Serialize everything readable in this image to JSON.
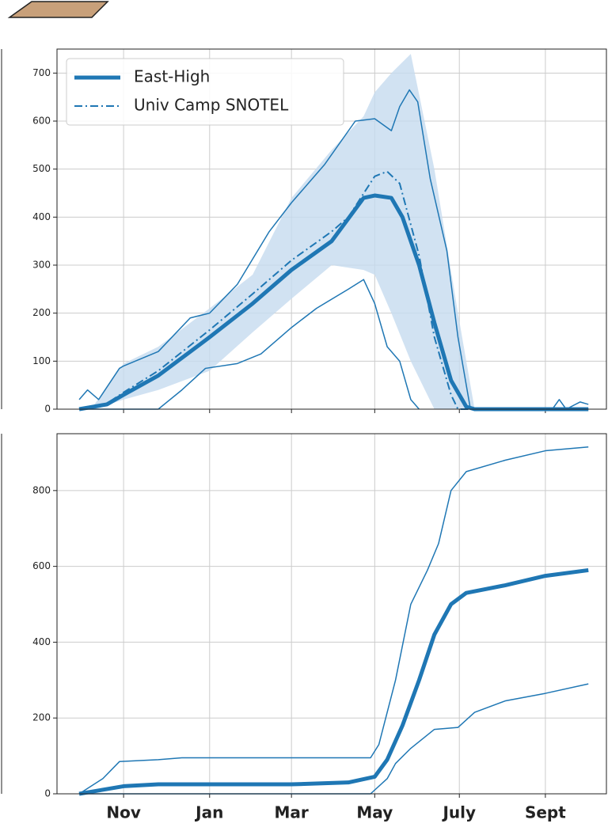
{
  "chart_data": [
    {
      "type": "line",
      "xlim": [
        -17,
        379
      ],
      "xticks": [
        31,
        93,
        152,
        212,
        273,
        335
      ],
      "ylim": [
        0,
        750
      ],
      "yticks": [
        0,
        100,
        200,
        300,
        400,
        500,
        600,
        700
      ],
      "grid": true,
      "legend": "upper left",
      "band": {
        "color": "#c6dbef",
        "x": [
          10,
          31,
          56,
          93,
          124,
          152,
          181,
          204,
          212,
          224,
          238,
          255,
          272,
          284
        ],
        "lower": [
          0,
          20,
          40,
          80,
          160,
          230,
          300,
          290,
          280,
          200,
          100,
          0,
          0,
          0
        ],
        "upper": [
          10,
          95,
          130,
          210,
          280,
          440,
          540,
          610,
          660,
          700,
          740,
          500,
          200,
          0
        ]
      },
      "series": [
        {
          "name": "East-High",
          "color": "#1f77b4",
          "linewidth": 5,
          "linestyle": "solid",
          "x": [
            -1,
            19,
            31,
            56,
            93,
            124,
            152,
            181,
            204,
            212,
            224,
            232,
            244,
            255,
            267,
            278,
            284,
            366
          ],
          "values": [
            0,
            10,
            30,
            70,
            150,
            220,
            290,
            350,
            440,
            445,
            440,
            400,
            300,
            180,
            60,
            5,
            0,
            0
          ]
        },
        {
          "name": "Univ Camp SNOTEL",
          "color": "#1f77b4",
          "linewidth": 2,
          "linestyle": "dashdot",
          "x": [
            -1,
            19,
            31,
            56,
            93,
            124,
            152,
            181,
            193,
            212,
            221,
            230,
            244,
            255,
            267,
            272,
            366
          ],
          "values": [
            0,
            12,
            35,
            80,
            165,
            240,
            310,
            370,
            400,
            485,
            495,
            470,
            320,
            150,
            30,
            0,
            0
          ]
        },
        {
          "color": "#1f77b4",
          "linewidth": 1.5,
          "linestyle": "solid",
          "x": [
            -1,
            5,
            13,
            28,
            31,
            56,
            79,
            93,
            113,
            136,
            152,
            176,
            198,
            212,
            224,
            230,
            237,
            243,
            252,
            264,
            272,
            281,
            340,
            345,
            350,
            360,
            366
          ],
          "values": [
            20,
            40,
            20,
            85,
            90,
            120,
            190,
            200,
            260,
            370,
            430,
            510,
            600,
            605,
            580,
            630,
            665,
            640,
            480,
            330,
            150,
            0,
            0,
            20,
            0,
            15,
            10
          ]
        },
        {
          "color": "#1f77b4",
          "linewidth": 1.5,
          "linestyle": "solid",
          "x": [
            -1,
            56,
            73,
            90,
            113,
            130,
            152,
            170,
            193,
            204,
            212,
            221,
            230,
            238,
            244
          ],
          "values": [
            0,
            0,
            40,
            85,
            95,
            115,
            170,
            210,
            250,
            270,
            220,
            130,
            100,
            20,
            0
          ]
        }
      ]
    },
    {
      "type": "line",
      "xlim": [
        -17,
        379
      ],
      "xticks": [
        {
          "value": 31,
          "label": "Nov"
        },
        {
          "value": 93,
          "label": "Jan"
        },
        {
          "value": 152,
          "label": "Mar"
        },
        {
          "value": 212,
          "label": "May"
        },
        {
          "value": 273,
          "label": "July"
        },
        {
          "value": 335,
          "label": "Sept"
        }
      ],
      "ylim": [
        0,
        950
      ],
      "yticks": [
        0,
        200,
        400,
        600,
        800
      ],
      "grid": true,
      "series": [
        {
          "color": "#1f77b4",
          "linewidth": 5,
          "linestyle": "solid",
          "x": [
            -1,
            31,
            56,
            93,
            152,
            193,
            212,
            221,
            232,
            244,
            255,
            267,
            278,
            306,
            335,
            366
          ],
          "values": [
            0,
            20,
            25,
            25,
            25,
            30,
            45,
            90,
            180,
            300,
            420,
            500,
            530,
            550,
            575,
            590
          ]
        },
        {
          "color": "#1f77b4",
          "linewidth": 1.5,
          "linestyle": "solid",
          "x": [
            -1,
            16,
            28,
            56,
            73,
            113,
            209,
            215,
            227,
            238,
            250,
            258,
            267,
            278,
            306,
            335,
            366
          ],
          "values": [
            0,
            40,
            85,
            90,
            95,
            95,
            95,
            130,
            300,
            500,
            590,
            660,
            800,
            850,
            880,
            905,
            915
          ]
        },
        {
          "color": "#1f77b4",
          "linewidth": 1.5,
          "linestyle": "solid",
          "x": [
            -1,
            209,
            221,
            227,
            238,
            255,
            272,
            284,
            306,
            335,
            366
          ],
          "values": [
            0,
            0,
            40,
            80,
            120,
            170,
            175,
            215,
            245,
            265,
            290
          ]
        }
      ]
    }
  ]
}
